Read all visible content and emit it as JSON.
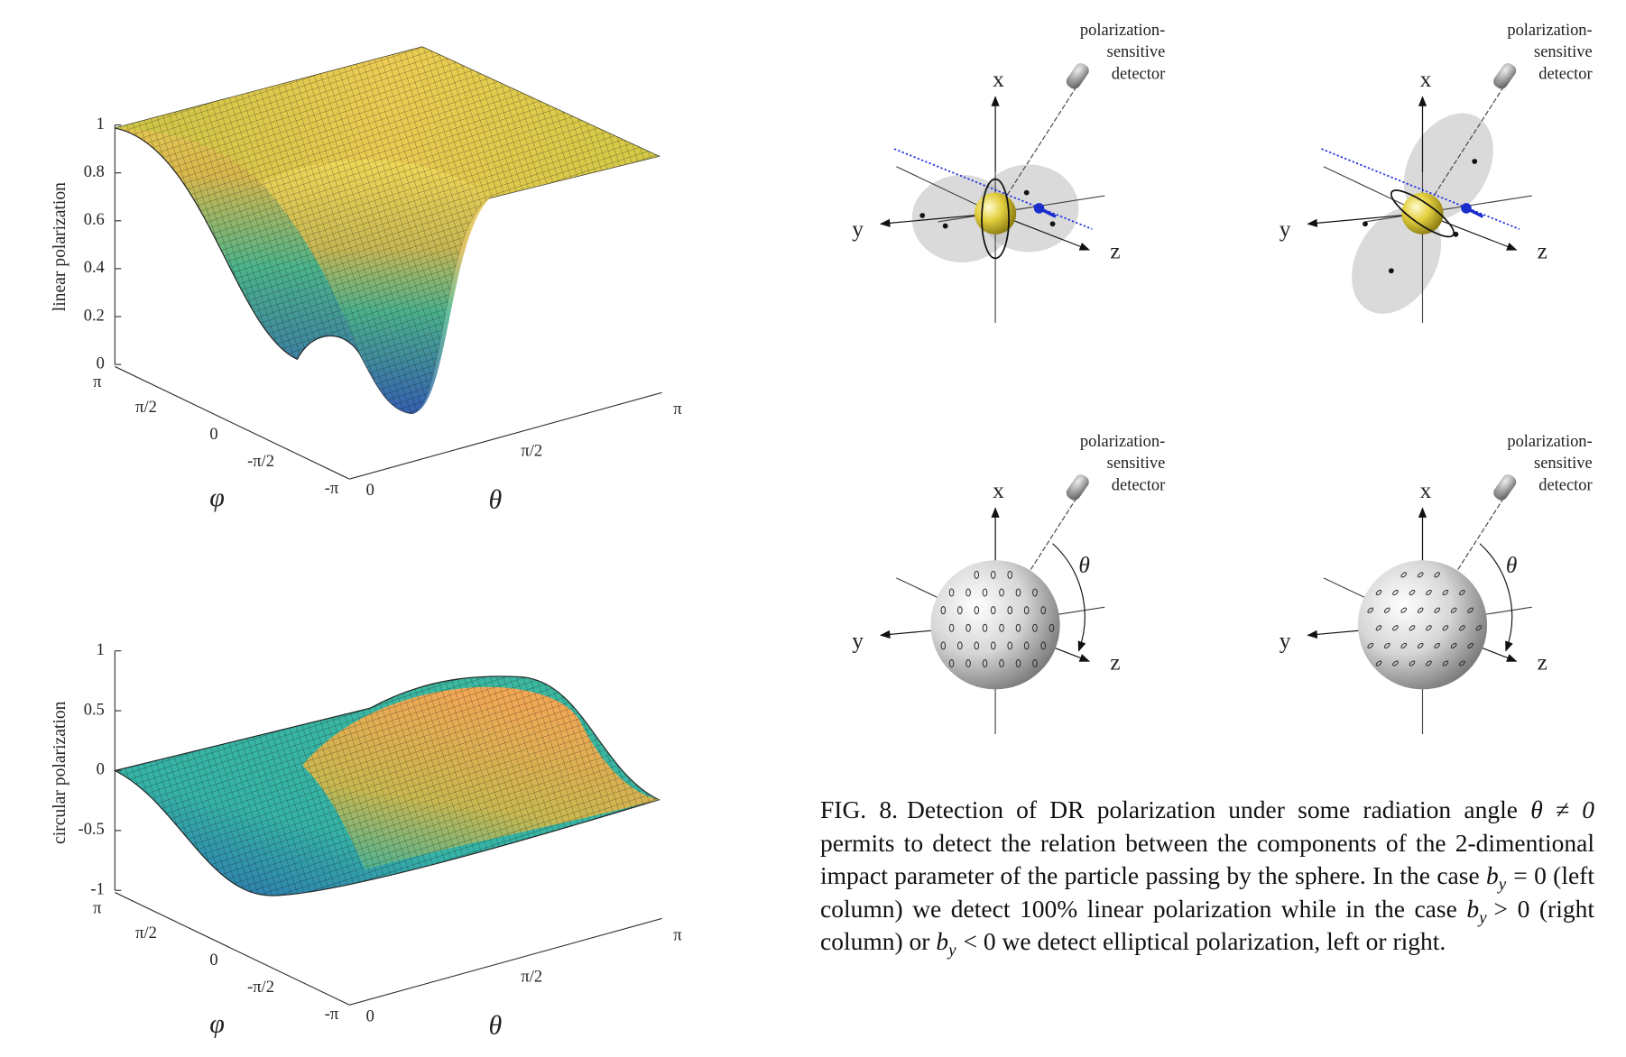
{
  "plots": [
    {
      "zlabel": "linear polarization",
      "zticks": [
        "1",
        "0.8",
        "0.6",
        "0.4",
        "0.2",
        "0"
      ],
      "phi_label": "φ",
      "phi_ticks": [
        "π",
        "π/2",
        "0",
        "-π/2",
        "-π"
      ],
      "theta_label": "θ",
      "theta_ticks": [
        "0",
        "π/2",
        "π"
      ]
    },
    {
      "zlabel": "circular polarization",
      "zticks": [
        "1",
        "0.5",
        "0",
        "-0.5",
        "-1"
      ],
      "phi_label": "φ",
      "phi_ticks": [
        "π",
        "π/2",
        "0",
        "-π/2",
        "-π"
      ],
      "theta_label": "θ",
      "theta_ticks": [
        "0",
        "π/2",
        "π"
      ]
    }
  ],
  "diagrams": [
    {
      "detector_label": [
        "polarization-",
        "sensitive",
        "detector"
      ],
      "axes": [
        "x",
        "y",
        "z"
      ]
    },
    {
      "detector_label": [
        "polarization-",
        "sensitive",
        "detector"
      ],
      "axes": [
        "x",
        "y",
        "z"
      ]
    },
    {
      "detector_label": [
        "polarization-",
        "sensitive",
        "detector"
      ],
      "axes": [
        "x",
        "y",
        "z"
      ],
      "angle_label": "θ"
    },
    {
      "detector_label": [
        "polarization-",
        "sensitive",
        "detector"
      ],
      "axes": [
        "x",
        "y",
        "z"
      ],
      "angle_label": "θ"
    }
  ],
  "caption": {
    "label": "FIG. 8.",
    "segments": [
      {
        "text": "Detection of DR polarization under some radiation angle "
      },
      {
        "math": "θ ≠ 0"
      },
      {
        "text": " permits to detect the relation between the components of the 2-dimentional impact parameter of the particle passing by the sphere. In the case "
      },
      {
        "var": "b",
        "sub": "y",
        "rel": "= 0"
      },
      {
        "text": " (left column) we detect 100% linear polarization while in the case "
      },
      {
        "var": "b",
        "sub": "y",
        "rel": "> 0"
      },
      {
        "text": " (right column) or "
      },
      {
        "var": "b",
        "sub": "y",
        "rel": "< 0"
      },
      {
        "text": " we detect elliptical polarization, left or right."
      }
    ]
  }
}
